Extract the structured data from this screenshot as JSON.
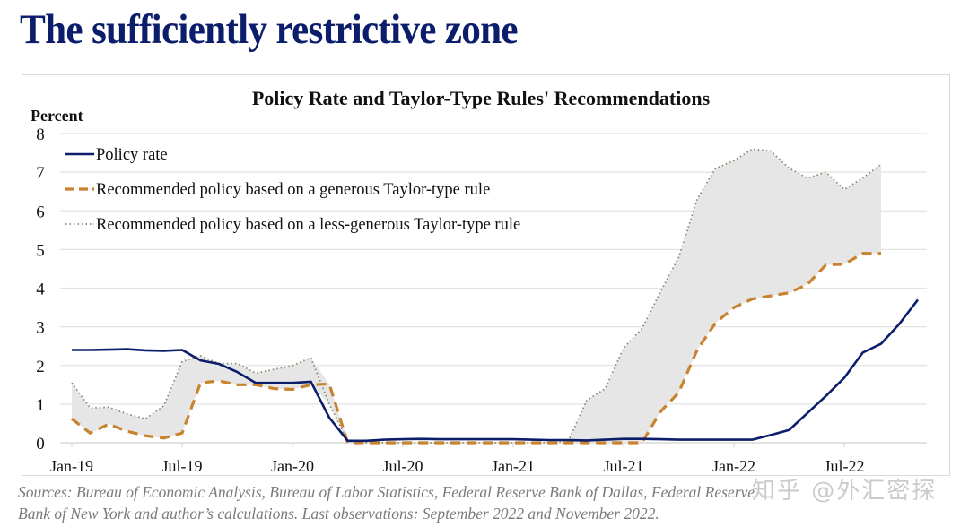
{
  "headline": "The sufficiently restrictive zone",
  "source_note": {
    "line1": "Sources: Bureau of Economic Analysis, Bureau of Labor Statistics, Federal Reserve Bank of Dallas, Federal Reserve",
    "line2": "Bank of New York and author’s calculations. Last observations: September 2022 and November 2022."
  },
  "watermark": "知乎 @外汇密探",
  "chart_data": {
    "type": "line",
    "title": "Policy Rate and Taylor-Type Rules' Recommendations",
    "ylabel": "Percent",
    "xlabel": "",
    "ylim": [
      0,
      8
    ],
    "yticks": [
      0,
      1,
      2,
      3,
      4,
      5,
      6,
      7,
      8
    ],
    "grid": true,
    "legend_position": "top-left",
    "x_tick_labels": [
      "Jan-19",
      "Jul-19",
      "Jan-20",
      "Jul-20",
      "Jan-21",
      "Jul-21",
      "Jan-22",
      "Jul-22"
    ],
    "x_tick_month_index": [
      0,
      6,
      12,
      18,
      24,
      30,
      36,
      42
    ],
    "x_start": "Jan-19",
    "x_frequency": "monthly",
    "shaded_band": {
      "between": [
        "Recommended policy based on a less-generous Taylor-type rule",
        "Recommended policy based on a generous Taylor-type rule"
      ],
      "color": "#e6e6e6"
    },
    "series": [
      {
        "name": "Policy rate",
        "style": "solid",
        "color": "#0b1d6b",
        "values": [
          2.4,
          2.4,
          2.41,
          2.42,
          2.39,
          2.38,
          2.4,
          2.13,
          2.04,
          1.83,
          1.55,
          1.55,
          1.55,
          1.58,
          0.65,
          0.05,
          0.05,
          0.08,
          0.09,
          0.1,
          0.09,
          0.09,
          0.09,
          0.09,
          0.09,
          0.08,
          0.07,
          0.07,
          0.06,
          0.08,
          0.1,
          0.1,
          0.09,
          0.08,
          0.08,
          0.08,
          0.08,
          0.08,
          0.2,
          0.33,
          0.77,
          1.21,
          1.68,
          2.33,
          2.56,
          3.08,
          3.7
        ]
      },
      {
        "name": "Recommended policy based on a generous Taylor-type rule",
        "style": "dashed",
        "color": "#c8832f",
        "values": [
          0.62,
          0.25,
          0.48,
          0.3,
          0.18,
          0.12,
          0.25,
          1.55,
          1.6,
          1.5,
          1.5,
          1.4,
          1.38,
          1.5,
          1.52,
          0.0,
          0.0,
          0.0,
          0.0,
          0.0,
          0.0,
          0.0,
          0.0,
          0.0,
          0.0,
          0.0,
          0.0,
          0.0,
          0.0,
          0.0,
          0.0,
          0.0,
          0.8,
          1.3,
          2.4,
          3.1,
          3.5,
          3.72,
          3.8,
          3.88,
          4.1,
          4.6,
          4.62,
          4.9,
          4.9
        ]
      },
      {
        "name": "Recommended policy based on a less-generous Taylor-type rule",
        "style": "dotted",
        "color": "#8a8a70",
        "values": [
          1.55,
          0.9,
          0.92,
          0.75,
          0.62,
          0.95,
          2.1,
          2.25,
          2.05,
          2.05,
          1.8,
          1.9,
          2.0,
          2.2,
          1.0,
          0.05,
          0.0,
          0.0,
          0.0,
          0.0,
          0.0,
          0.0,
          0.0,
          0.0,
          0.0,
          0.0,
          0.0,
          0.05,
          1.1,
          1.4,
          2.45,
          2.95,
          3.9,
          4.8,
          6.3,
          7.1,
          7.3,
          7.6,
          7.55,
          7.1,
          6.85,
          7.0,
          6.55,
          6.85,
          7.2
        ]
      }
    ]
  }
}
